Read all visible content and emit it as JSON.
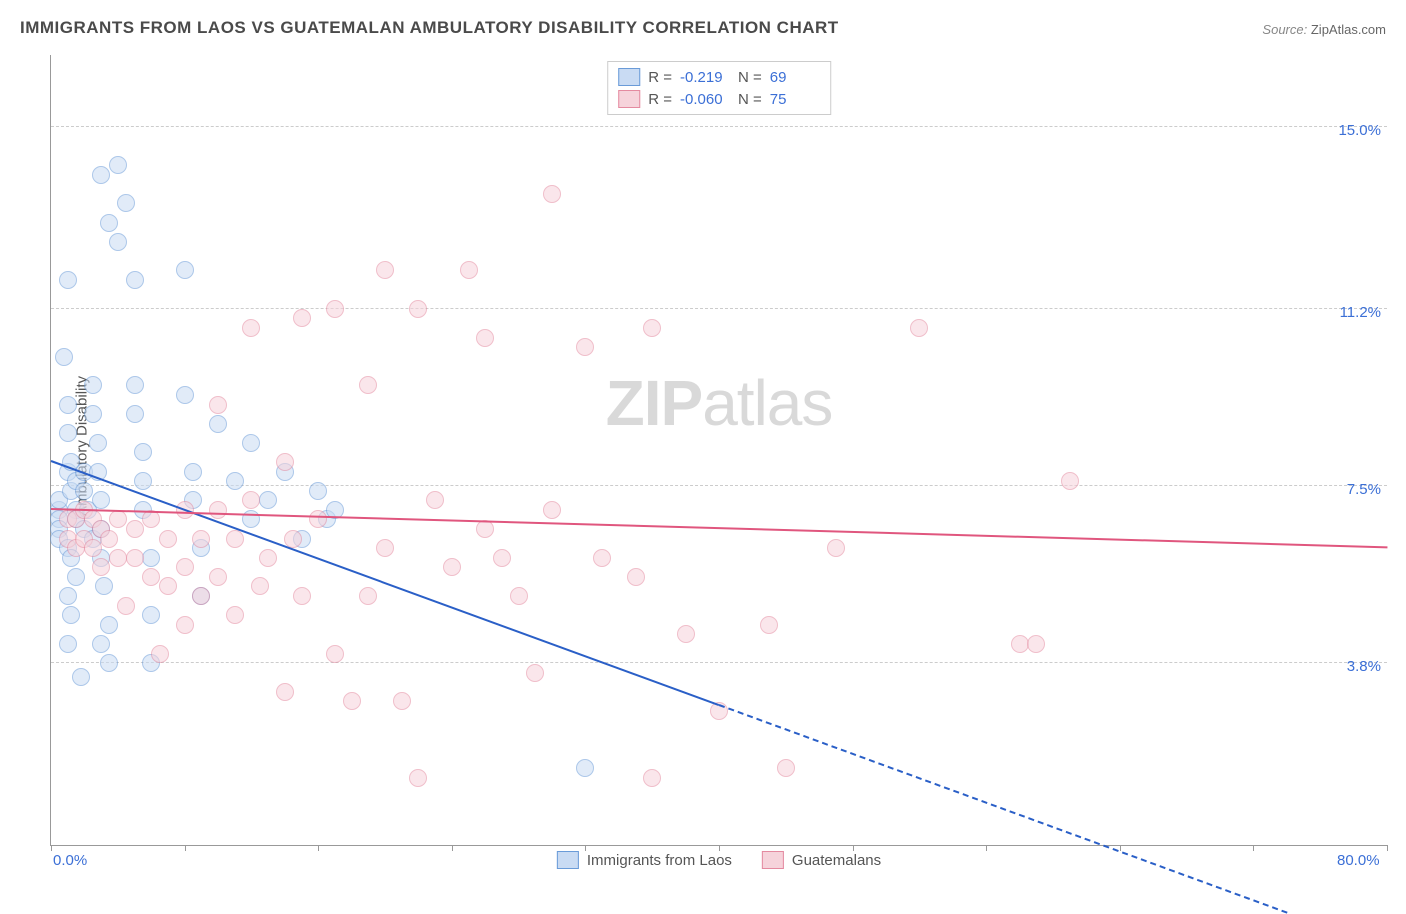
{
  "title": "IMMIGRANTS FROM LAOS VS GUATEMALAN AMBULATORY DISABILITY CORRELATION CHART",
  "source_label": "Source:",
  "source_value": "ZipAtlas.com",
  "ylabel": "Ambulatory Disability",
  "watermark_bold": "ZIP",
  "watermark_light": "atlas",
  "chart": {
    "type": "scatter-with-trend",
    "background_color": "#ffffff",
    "grid_color": "#cccccc",
    "axis_color": "#999999",
    "tick_label_color": "#3b6fd6",
    "axis_label_color": "#555555",
    "title_fontsize": 17,
    "label_fontsize": 15,
    "tick_fontsize": 15,
    "xlim": [
      0,
      80
    ],
    "ylim": [
      0,
      16.5
    ],
    "x_ticks_minor": [
      0,
      8,
      16,
      24,
      32,
      40,
      48,
      56,
      64,
      72,
      80
    ],
    "x_tick_labels": [
      {
        "x": 0,
        "label": "0.0%"
      },
      {
        "x": 80,
        "label": "80.0%"
      }
    ],
    "y_gridlines": [
      3.8,
      7.5,
      11.2,
      15.0
    ],
    "y_tick_labels": [
      {
        "y": 3.8,
        "label": "3.8%"
      },
      {
        "y": 7.5,
        "label": "7.5%"
      },
      {
        "y": 11.2,
        "label": "11.2%"
      },
      {
        "y": 15.0,
        "label": "15.0%"
      }
    ],
    "series": [
      {
        "name": "Immigrants from Laos",
        "fill_color": "#c9dbf3",
        "stroke_color": "#6a9bd8",
        "fill_opacity": 0.55,
        "marker_radius": 8,
        "trend": {
          "color": "#2a5fc7",
          "width": 2,
          "solid_from_x": 0,
          "solid_to_x": 40,
          "dash_from_x": 40,
          "dash_to_x": 74,
          "y_at_x0": 8.0,
          "y_at_x80": -2.2
        },
        "stats": {
          "R": "-0.219",
          "N": "69"
        },
        "points": [
          [
            0.5,
            7.0
          ],
          [
            0.5,
            6.8
          ],
          [
            0.5,
            6.6
          ],
          [
            0.5,
            7.2
          ],
          [
            0.5,
            6.4
          ],
          [
            0.8,
            10.2
          ],
          [
            1.0,
            11.8
          ],
          [
            1.2,
            7.4
          ],
          [
            1.0,
            7.8
          ],
          [
            1.2,
            8.0
          ],
          [
            1.5,
            7.6
          ],
          [
            1.5,
            7.0
          ],
          [
            1.5,
            6.8
          ],
          [
            1.0,
            6.2
          ],
          [
            1.2,
            6.0
          ],
          [
            1.5,
            5.6
          ],
          [
            1.0,
            5.2
          ],
          [
            1.2,
            4.8
          ],
          [
            1.0,
            4.2
          ],
          [
            1.8,
            3.5
          ],
          [
            2.0,
            7.8
          ],
          [
            2.0,
            7.4
          ],
          [
            2.2,
            7.0
          ],
          [
            2.0,
            6.6
          ],
          [
            2.5,
            6.4
          ],
          [
            2.5,
            9.6
          ],
          [
            2.5,
            9.0
          ],
          [
            2.8,
            8.4
          ],
          [
            2.8,
            7.8
          ],
          [
            3.0,
            7.2
          ],
          [
            3.0,
            6.6
          ],
          [
            3.0,
            6.0
          ],
          [
            3.2,
            5.4
          ],
          [
            3.5,
            4.6
          ],
          [
            3.0,
            4.2
          ],
          [
            4.0,
            14.2
          ],
          [
            4.5,
            13.4
          ],
          [
            4.0,
            12.6
          ],
          [
            5.0,
            11.8
          ],
          [
            5.0,
            9.6
          ],
          [
            5.0,
            9.0
          ],
          [
            5.5,
            8.2
          ],
          [
            5.5,
            7.6
          ],
          [
            5.5,
            7.0
          ],
          [
            6.0,
            6.0
          ],
          [
            6.0,
            4.8
          ],
          [
            6.0,
            3.8
          ],
          [
            8.0,
            12.0
          ],
          [
            8.0,
            9.4
          ],
          [
            8.5,
            7.8
          ],
          [
            8.5,
            7.2
          ],
          [
            9.0,
            6.2
          ],
          [
            9.0,
            5.2
          ],
          [
            10.0,
            8.8
          ],
          [
            11.0,
            7.6
          ],
          [
            12.0,
            8.4
          ],
          [
            12.0,
            6.8
          ],
          [
            13.0,
            7.2
          ],
          [
            14.0,
            7.8
          ],
          [
            15.0,
            6.4
          ],
          [
            16.0,
            7.4
          ],
          [
            16.5,
            6.8
          ],
          [
            17.0,
            7.0
          ],
          [
            32.0,
            1.6
          ],
          [
            3.0,
            14.0
          ],
          [
            3.5,
            13.0
          ],
          [
            1.0,
            8.6
          ],
          [
            1.0,
            9.2
          ],
          [
            3.5,
            3.8
          ]
        ]
      },
      {
        "name": "Guatemalans",
        "fill_color": "#f6d3db",
        "stroke_color": "#e48aa0",
        "fill_opacity": 0.55,
        "marker_radius": 8,
        "trend": {
          "color": "#e0567e",
          "width": 2,
          "solid_from_x": 0,
          "solid_to_x": 80,
          "dash_from_x": 80,
          "dash_to_x": 80,
          "y_at_x0": 7.0,
          "y_at_x80": 6.2
        },
        "stats": {
          "R": "-0.060",
          "N": "75"
        },
        "points": [
          [
            1.0,
            6.8
          ],
          [
            1.0,
            6.4
          ],
          [
            1.5,
            6.8
          ],
          [
            1.5,
            6.2
          ],
          [
            2.0,
            7.0
          ],
          [
            2.0,
            6.4
          ],
          [
            2.5,
            6.8
          ],
          [
            2.5,
            6.2
          ],
          [
            3.0,
            6.6
          ],
          [
            3.0,
            5.8
          ],
          [
            3.5,
            6.4
          ],
          [
            4.0,
            6.8
          ],
          [
            4.0,
            6.0
          ],
          [
            5.0,
            6.6
          ],
          [
            5.0,
            6.0
          ],
          [
            6.0,
            6.8
          ],
          [
            6.0,
            5.6
          ],
          [
            7.0,
            6.4
          ],
          [
            7.0,
            5.4
          ],
          [
            8.0,
            7.0
          ],
          [
            8.0,
            5.8
          ],
          [
            9.0,
            6.4
          ],
          [
            9.0,
            5.2
          ],
          [
            10.0,
            7.0
          ],
          [
            10.0,
            5.6
          ],
          [
            11.0,
            6.4
          ],
          [
            11.0,
            4.8
          ],
          [
            12.0,
            7.2
          ],
          [
            12.5,
            5.4
          ],
          [
            13.0,
            6.0
          ],
          [
            14.0,
            8.0
          ],
          [
            14.5,
            6.4
          ],
          [
            15.0,
            11.0
          ],
          [
            15.0,
            5.2
          ],
          [
            16.0,
            6.8
          ],
          [
            17.0,
            11.2
          ],
          [
            17.0,
            4.0
          ],
          [
            18.0,
            3.0
          ],
          [
            19.0,
            9.6
          ],
          [
            20.0,
            12.0
          ],
          [
            20.0,
            6.2
          ],
          [
            22.0,
            11.2
          ],
          [
            22.0,
            1.4
          ],
          [
            23.0,
            7.2
          ],
          [
            24.0,
            5.8
          ],
          [
            25.0,
            12.0
          ],
          [
            26.0,
            10.6
          ],
          [
            26.0,
            6.6
          ],
          [
            27.0,
            6.0
          ],
          [
            28.0,
            5.2
          ],
          [
            30.0,
            13.6
          ],
          [
            30.0,
            7.0
          ],
          [
            32.0,
            10.4
          ],
          [
            33.0,
            6.0
          ],
          [
            35.0,
            5.6
          ],
          [
            36.0,
            10.8
          ],
          [
            36.0,
            1.4
          ],
          [
            38.0,
            4.4
          ],
          [
            40.0,
            2.8
          ],
          [
            43.0,
            4.6
          ],
          [
            44.0,
            1.6
          ],
          [
            52.0,
            10.8
          ],
          [
            58.0,
            4.2
          ],
          [
            59.0,
            4.2
          ],
          [
            61.0,
            7.6
          ],
          [
            10.0,
            9.2
          ],
          [
            12.0,
            10.8
          ],
          [
            6.5,
            4.0
          ],
          [
            8.0,
            4.6
          ],
          [
            4.5,
            5.0
          ],
          [
            14.0,
            3.2
          ],
          [
            19.0,
            5.2
          ],
          [
            29.0,
            3.6
          ],
          [
            47.0,
            6.2
          ],
          [
            21.0,
            3.0
          ]
        ]
      }
    ],
    "legend_labels_R": "R =",
    "legend_labels_N": "N ="
  }
}
